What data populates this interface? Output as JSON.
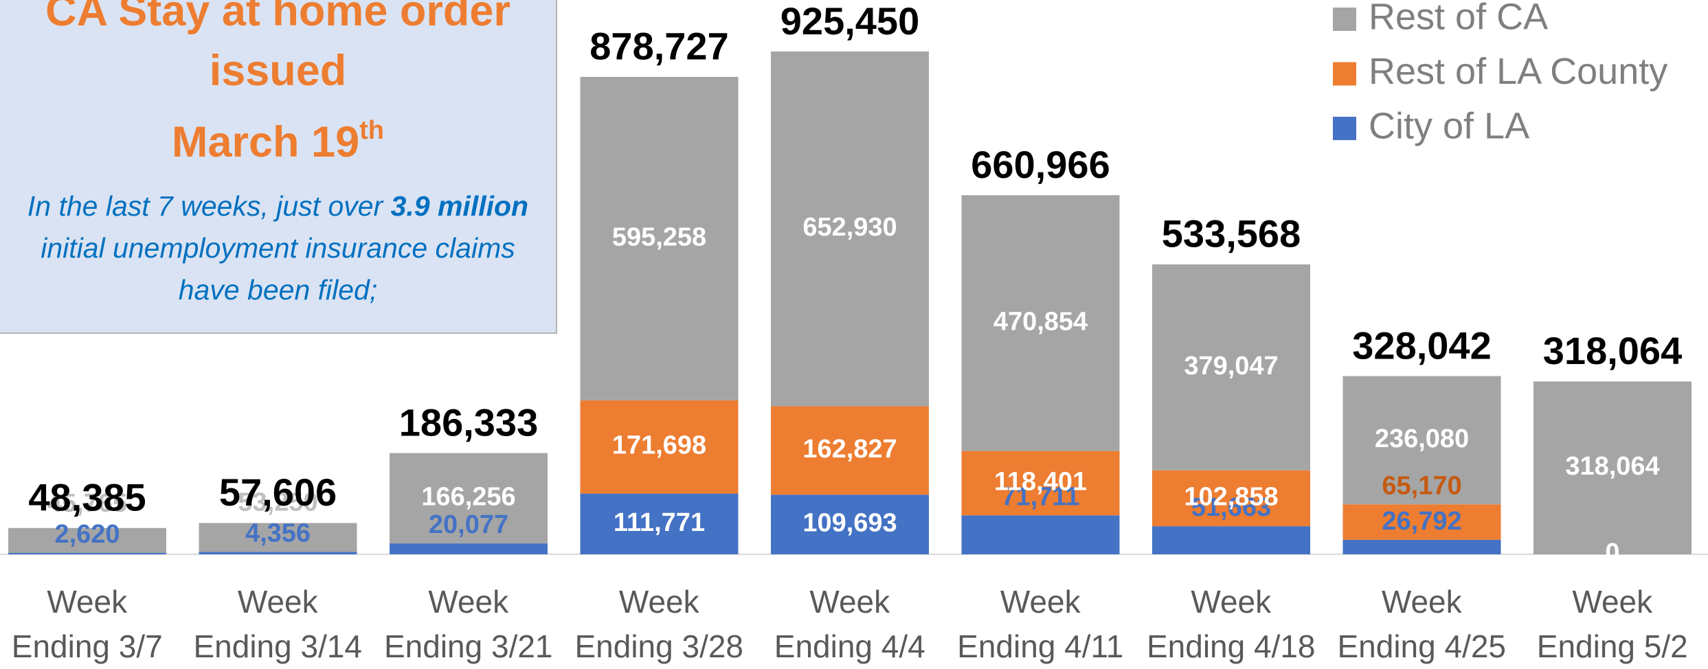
{
  "chart_data": {
    "type": "stacked_bar",
    "categories": [
      "Week\nEnding 3/7",
      "Week\nEnding 3/14",
      "Week\nEnding 3/21",
      "Week\nEnding 3/28",
      "Week\nEnding 4/4",
      "Week\nEnding 4/11",
      "Week\nEnding 4/18",
      "Week\nEnding 4/25",
      "Week\nEnding 5/2"
    ],
    "series": [
      {
        "name": "City of LA",
        "color": "#4472c4",
        "values": [
          2620,
          4356,
          20077,
          111771,
          109693,
          71711,
          51663,
          26792,
          0
        ],
        "value_labels": [
          "2,620",
          "4,356",
          "20,077",
          "111,771",
          "109,693",
          "71,711",
          "51,663",
          "26,792",
          "0"
        ]
      },
      {
        "name": "Rest of LA County",
        "color": "#ed7d31",
        "values": [
          null,
          null,
          null,
          171698,
          162827,
          118401,
          102858,
          65170,
          null
        ],
        "value_labels": [
          null,
          null,
          null,
          "171,698",
          "162,827",
          "118,401",
          "102,858",
          "65,170",
          null
        ]
      },
      {
        "name": "Rest of CA",
        "color": "#a5a5a5",
        "values": [
          45765,
          53250,
          166256,
          595258,
          652930,
          470854,
          379047,
          236080,
          318064
        ],
        "value_labels": [
          "45,765",
          "53,250",
          "166,256",
          "595,258",
          "652,930",
          "470,854",
          "379,047",
          "236,080",
          "318,064"
        ]
      }
    ],
    "totals": [
      48385,
      57606,
      186333,
      878727,
      925450,
      660966,
      533568,
      328042,
      318064
    ],
    "total_labels": [
      "48,385",
      "57,606",
      "186,333",
      "878,727",
      "925,450",
      "660,966",
      "533,568",
      "328,042",
      "318,064"
    ],
    "ylim": [
      0,
      1000000
    ],
    "legend": "top-right",
    "annotation": {
      "heading_lines": [
        "CA Stay at home order",
        "issued"
      ],
      "heading_date": "March 19",
      "heading_sup": "th",
      "body": [
        "In the last 7 weeks, just over ",
        "3.9 million",
        " initial unemployment insurance claims have been filed;"
      ]
    }
  }
}
